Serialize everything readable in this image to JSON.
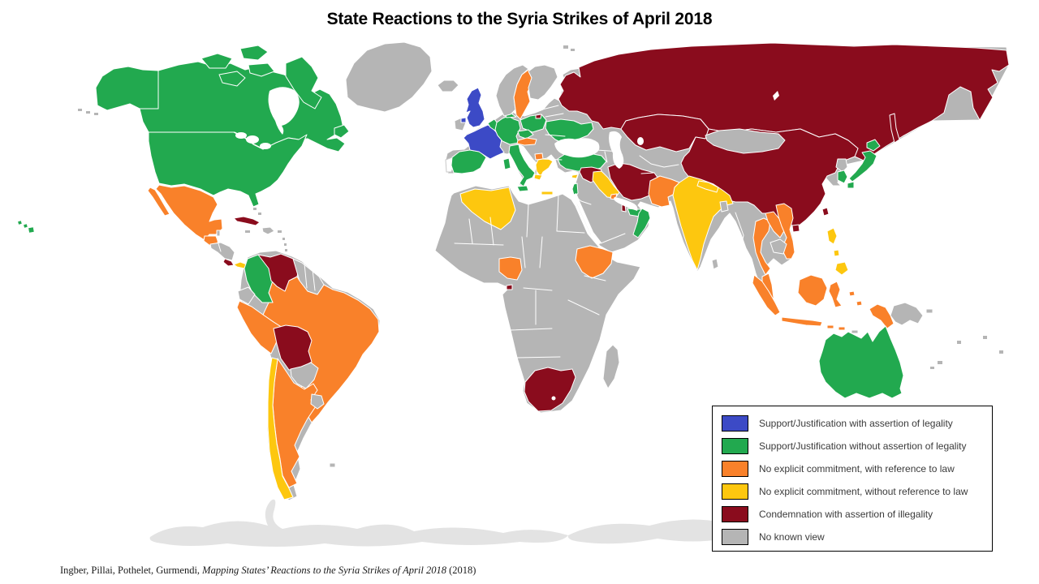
{
  "title": "State Reactions to the Syria Strikes of April 2018",
  "citation": {
    "authors": "Ingber, Pillai,  Pothelet, Gurmendi, ",
    "work": "Mapping States’ Reactions to the Syria Strikes of April 2018",
    "year": " (2018)"
  },
  "legend": {
    "items": [
      {
        "id": "support-legal",
        "label": "Support/Justification with assertion of legality",
        "color": "#3C4AC6"
      },
      {
        "id": "support-no-legal",
        "label": "Support/Justification without assertion of legality",
        "color": "#22A94F"
      },
      {
        "id": "no-commit-law",
        "label": "No explicit commitment, with reference to law",
        "color": "#F9812A"
      },
      {
        "id": "no-commit-no-law",
        "label": "No explicit commitment, without reference to law",
        "color": "#FDC70F"
      },
      {
        "id": "condemnation",
        "label": "Condemnation with assertion of illegality",
        "color": "#8A0C1D"
      },
      {
        "id": "no-view",
        "label": "No known view",
        "color": "#B5B5B5"
      }
    ]
  },
  "map": {
    "ocean_color": "#FFFFFF",
    "border_color": "#FFFFFF",
    "antarctica_color": "#E3E3E3",
    "no_data_color": "#FFFFFF",
    "countries": [
      {
        "region": "antarctica",
        "category": "ice"
      },
      {
        "region": "eurasia-base",
        "category": "no-view"
      },
      {
        "region": "africa-base",
        "category": "no-view"
      },
      {
        "region": "south-america-base",
        "category": "no-view"
      },
      {
        "region": "greenland",
        "category": "no-view"
      },
      {
        "region": "canada",
        "category": "support-no-legal"
      },
      {
        "region": "usa",
        "category": "support-no-legal"
      },
      {
        "region": "hawaii",
        "category": "support-no-legal"
      },
      {
        "region": "aleutians",
        "category": "no-view"
      },
      {
        "region": "mexico",
        "category": "no-commit-law"
      },
      {
        "region": "guatemala",
        "category": "no-commit-law"
      },
      {
        "region": "belize",
        "category": "no-view"
      },
      {
        "region": "honduras-nicaragua",
        "category": "no-view"
      },
      {
        "region": "costa-rica",
        "category": "condemnation"
      },
      {
        "region": "panama",
        "category": "no-commit-no-law"
      },
      {
        "region": "cuba",
        "category": "condemnation"
      },
      {
        "region": "hispaniola",
        "category": "no-view"
      },
      {
        "region": "caribbean-islands",
        "category": "no-view"
      },
      {
        "region": "brazil",
        "category": "no-commit-law"
      },
      {
        "region": "peru",
        "category": "no-commit-law"
      },
      {
        "region": "bolivia",
        "category": "condemnation"
      },
      {
        "region": "paraguay",
        "category": "no-view"
      },
      {
        "region": "argentina",
        "category": "no-commit-law"
      },
      {
        "region": "chile",
        "category": "no-commit-no-law"
      },
      {
        "region": "uruguay",
        "category": "no-view"
      },
      {
        "region": "falklands",
        "category": "no-view"
      },
      {
        "region": "colombia",
        "category": "support-no-legal"
      },
      {
        "region": "venezuela",
        "category": "condemnation"
      },
      {
        "region": "guyanas",
        "category": "no-view"
      },
      {
        "region": "ecuador",
        "category": "no-view"
      },
      {
        "region": "iceland",
        "category": "no-view"
      },
      {
        "region": "ireland",
        "category": "no-view"
      },
      {
        "region": "united-kingdom",
        "category": "support-legal"
      },
      {
        "region": "france",
        "category": "support-legal"
      },
      {
        "region": "portugal",
        "category": "no-data"
      },
      {
        "region": "spain",
        "category": "support-no-legal"
      },
      {
        "region": "belgium-netherlands",
        "category": "support-no-legal"
      },
      {
        "region": "germany",
        "category": "support-no-legal"
      },
      {
        "region": "denmark",
        "category": "support-no-legal"
      },
      {
        "region": "norway",
        "category": "no-view"
      },
      {
        "region": "sweden",
        "category": "no-commit-law"
      },
      {
        "region": "finland",
        "category": "no-view"
      },
      {
        "region": "poland",
        "category": "support-no-legal"
      },
      {
        "region": "czechia",
        "category": "support-no-legal"
      },
      {
        "region": "austria",
        "category": "no-commit-law"
      },
      {
        "region": "italy",
        "category": "support-no-legal"
      },
      {
        "region": "north-macedonia",
        "category": "no-commit-law"
      },
      {
        "region": "greece",
        "category": "no-commit-no-law"
      },
      {
        "region": "ukraine",
        "category": "support-no-legal"
      },
      {
        "region": "turkey",
        "category": "support-no-legal"
      },
      {
        "region": "cyprus",
        "category": "no-commit-no-law"
      },
      {
        "region": "syria",
        "category": "condemnation"
      },
      {
        "region": "israel",
        "category": "support-no-legal"
      },
      {
        "region": "iraq",
        "category": "no-commit-no-law"
      },
      {
        "region": "iran",
        "category": "condemnation"
      },
      {
        "region": "kuwait",
        "category": "no-commit-law"
      },
      {
        "region": "qatar",
        "category": "condemnation"
      },
      {
        "region": "uae",
        "category": "support-no-legal"
      },
      {
        "region": "oman",
        "category": "support-no-legal"
      },
      {
        "region": "russia",
        "category": "condemnation"
      },
      {
        "region": "kazakhstan",
        "category": "condemnation"
      },
      {
        "region": "mongolia",
        "category": "no-view"
      },
      {
        "region": "china",
        "category": "condemnation"
      },
      {
        "region": "taiwan",
        "category": "condemnation"
      },
      {
        "region": "north-korea",
        "category": "no-view"
      },
      {
        "region": "south-korea",
        "category": "support-no-legal"
      },
      {
        "region": "japan",
        "category": "support-no-legal"
      },
      {
        "region": "pakistan",
        "category": "no-commit-law"
      },
      {
        "region": "india",
        "category": "no-commit-no-law"
      },
      {
        "region": "nepal",
        "category": "no-commit-no-law"
      },
      {
        "region": "bangladesh",
        "category": "no-view"
      },
      {
        "region": "sri-lanka",
        "category": "no-view"
      },
      {
        "region": "thailand",
        "category": "no-commit-law"
      },
      {
        "region": "laos",
        "category": "no-commit-law"
      },
      {
        "region": "vietnam",
        "category": "no-commit-law"
      },
      {
        "region": "cambodia",
        "category": "no-view"
      },
      {
        "region": "malaysia",
        "category": "no-commit-law"
      },
      {
        "region": "indonesia",
        "category": "no-commit-law"
      },
      {
        "region": "philippines",
        "category": "no-commit-no-law"
      },
      {
        "region": "timor",
        "category": "no-view"
      },
      {
        "region": "papua-new-guinea",
        "category": "no-view"
      },
      {
        "region": "australia",
        "category": "support-no-legal"
      },
      {
        "region": "pacific-islands",
        "category": "no-view"
      },
      {
        "region": "svalbard",
        "category": "no-view"
      },
      {
        "region": "algeria",
        "category": "no-commit-no-law"
      },
      {
        "region": "cote-divoire",
        "category": "no-commit-law"
      },
      {
        "region": "equatorial-guinea",
        "category": "condemnation"
      },
      {
        "region": "ethiopia",
        "category": "no-commit-law"
      },
      {
        "region": "south-africa",
        "category": "condemnation"
      },
      {
        "region": "madagascar",
        "category": "no-view"
      }
    ]
  }
}
